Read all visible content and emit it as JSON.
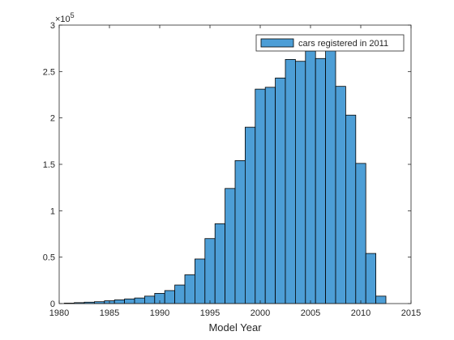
{
  "chart_data": {
    "type": "bar",
    "xlabel": "Model Year",
    "ylabel": "",
    "xlim": [
      1980,
      2015
    ],
    "ylim": [
      0,
      300000
    ],
    "y_exponent_label": "×10",
    "y_exponent": "5",
    "x_ticks": [
      1980,
      1985,
      1990,
      1995,
      2000,
      2005,
      2010,
      2015
    ],
    "x_tick_labels": [
      "1980",
      "1985",
      "1990",
      "1995",
      "2000",
      "2005",
      "2010",
      "2015"
    ],
    "y_ticks": [
      0,
      50000,
      100000,
      150000,
      200000,
      250000,
      300000
    ],
    "y_tick_labels": [
      "0",
      "0.5",
      "1",
      "1.5",
      "2",
      "2.5",
      "3"
    ],
    "bin_width": 1,
    "x": [
      1981,
      1982,
      1983,
      1984,
      1985,
      1986,
      1987,
      1988,
      1989,
      1990,
      1991,
      1992,
      1993,
      1994,
      1995,
      1996,
      1997,
      1998,
      1999,
      2000,
      2001,
      2002,
      2003,
      2004,
      2005,
      2006,
      2007,
      2008,
      2009,
      2010,
      2011,
      2012
    ],
    "series": [
      {
        "name": "cars registered in 2011",
        "values": [
          500,
          1000,
          1500,
          2000,
          3000,
          4000,
          5000,
          6000,
          8000,
          11000,
          14000,
          20000,
          31000,
          48000,
          70000,
          86000,
          124000,
          154000,
          190000,
          231000,
          233000,
          243000,
          263000,
          261000,
          272000,
          264000,
          275000,
          234000,
          203000,
          151000,
          54000,
          8000
        ]
      }
    ],
    "legend_position": "top-right",
    "grid": false,
    "bar_color": "#4d9ed6",
    "edge_color": "#000000"
  }
}
